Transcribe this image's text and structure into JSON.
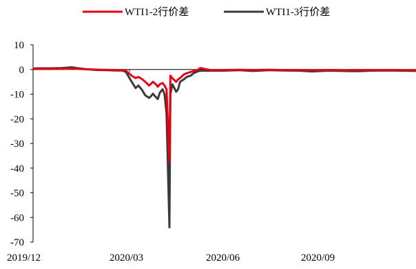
{
  "chart_data": {
    "type": "line",
    "legend_position": "top-center",
    "grid": false,
    "xlabel": "",
    "ylabel": "",
    "x_tick_labels": [
      "2019/12",
      "2020/03",
      "2020/06",
      "2020/09"
    ],
    "x_range": [
      "2019-12-01",
      "2020-12-31"
    ],
    "ylim": [
      -70,
      10
    ],
    "y_ticks": [
      10,
      0,
      -10,
      -20,
      -30,
      -40,
      -50,
      -60,
      -70
    ],
    "series": [
      {
        "name": "WTI1-3行价差",
        "color": "#3a3a3a",
        "points": [
          [
            "2019-12-02",
            0.4
          ],
          [
            "2019-12-10",
            0.5
          ],
          [
            "2019-12-20",
            0.5
          ],
          [
            "2019-12-31",
            0.6
          ],
          [
            "2020-01-10",
            0.9
          ],
          [
            "2020-01-15",
            0.6
          ],
          [
            "2020-01-25",
            0.1
          ],
          [
            "2020-02-05",
            -0.2
          ],
          [
            "2020-02-15",
            -0.3
          ],
          [
            "2020-02-25",
            -0.4
          ],
          [
            "2020-03-02",
            -0.4
          ],
          [
            "2020-03-06",
            -1.0
          ],
          [
            "2020-03-09",
            -3.0
          ],
          [
            "2020-03-12",
            -5.0
          ],
          [
            "2020-03-16",
            -7.5
          ],
          [
            "2020-03-19",
            -6.5
          ],
          [
            "2020-03-23",
            -8.5
          ],
          [
            "2020-03-26",
            -10.5
          ],
          [
            "2020-03-30",
            -11.5
          ],
          [
            "2020-04-01",
            -10.8
          ],
          [
            "2020-04-03",
            -9.8
          ],
          [
            "2020-04-06",
            -11.2
          ],
          [
            "2020-04-08",
            -12.0
          ],
          [
            "2020-04-10",
            -9.5
          ],
          [
            "2020-04-13",
            -8.0
          ],
          [
            "2020-04-15",
            -10.0
          ],
          [
            "2020-04-17",
            -18.0
          ],
          [
            "2020-04-20",
            -64.0
          ],
          [
            "2020-04-21",
            -10.0
          ],
          [
            "2020-04-23",
            -6.0
          ],
          [
            "2020-04-27",
            -9.0
          ],
          [
            "2020-04-29",
            -8.0
          ],
          [
            "2020-05-01",
            -5.0
          ],
          [
            "2020-05-05",
            -4.0
          ],
          [
            "2020-05-08",
            -3.0
          ],
          [
            "2020-05-12",
            -2.5
          ],
          [
            "2020-05-15",
            -1.5
          ],
          [
            "2020-05-19",
            -0.8
          ],
          [
            "2020-05-22",
            -0.5
          ],
          [
            "2020-06-01",
            -0.5
          ],
          [
            "2020-06-15",
            -0.5
          ],
          [
            "2020-07-01",
            -0.3
          ],
          [
            "2020-07-15",
            -0.6
          ],
          [
            "2020-08-01",
            -0.3
          ],
          [
            "2020-08-15",
            -0.4
          ],
          [
            "2020-09-01",
            -0.5
          ],
          [
            "2020-09-15",
            -0.8
          ],
          [
            "2020-10-01",
            -0.5
          ],
          [
            "2020-10-15",
            -0.6
          ],
          [
            "2020-11-01",
            -0.7
          ],
          [
            "2020-11-15",
            -0.5
          ],
          [
            "2020-12-01",
            -0.4
          ],
          [
            "2020-12-15",
            -0.5
          ],
          [
            "2020-12-31",
            -0.6
          ]
        ]
      },
      {
        "name": "WTI1-2行价差",
        "color": "#e60012",
        "points": [
          [
            "2019-12-02",
            0.2
          ],
          [
            "2019-12-15",
            0.2
          ],
          [
            "2019-12-31",
            0.3
          ],
          [
            "2020-01-10",
            0.4
          ],
          [
            "2020-01-25",
            0.1
          ],
          [
            "2020-02-10",
            -0.1
          ],
          [
            "2020-02-25",
            -0.2
          ],
          [
            "2020-03-02",
            -0.2
          ],
          [
            "2020-03-06",
            -0.5
          ],
          [
            "2020-03-09",
            -1.5
          ],
          [
            "2020-03-12",
            -2.5
          ],
          [
            "2020-03-16",
            -3.5
          ],
          [
            "2020-03-19",
            -3.0
          ],
          [
            "2020-03-23",
            -4.0
          ],
          [
            "2020-03-26",
            -5.0
          ],
          [
            "2020-03-30",
            -6.5
          ],
          [
            "2020-04-01",
            -5.8
          ],
          [
            "2020-04-03",
            -5.0
          ],
          [
            "2020-04-06",
            -6.0
          ],
          [
            "2020-04-08",
            -7.0
          ],
          [
            "2020-04-10",
            -6.0
          ],
          [
            "2020-04-13",
            -5.5
          ],
          [
            "2020-04-15",
            -6.5
          ],
          [
            "2020-04-17",
            -8.0
          ],
          [
            "2020-04-20",
            -37.5
          ],
          [
            "2020-04-21",
            -2.5
          ],
          [
            "2020-04-23",
            -3.5
          ],
          [
            "2020-04-27",
            -5.0
          ],
          [
            "2020-04-29",
            -4.0
          ],
          [
            "2020-05-01",
            -3.5
          ],
          [
            "2020-05-05",
            -2.0
          ],
          [
            "2020-05-08",
            -1.5
          ],
          [
            "2020-05-12",
            -1.0
          ],
          [
            "2020-05-15",
            -0.6
          ],
          [
            "2020-05-19",
            -0.2
          ],
          [
            "2020-05-22",
            0.6
          ],
          [
            "2020-06-01",
            -0.2
          ],
          [
            "2020-06-15",
            -0.2
          ],
          [
            "2020-07-01",
            -0.1
          ],
          [
            "2020-07-15",
            -0.2
          ],
          [
            "2020-08-01",
            -0.1
          ],
          [
            "2020-08-15",
            -0.2
          ],
          [
            "2020-09-01",
            -0.2
          ],
          [
            "2020-09-15",
            -0.3
          ],
          [
            "2020-10-01",
            -0.2
          ],
          [
            "2020-10-15",
            -0.3
          ],
          [
            "2020-11-01",
            -0.2
          ],
          [
            "2020-11-15",
            -0.2
          ],
          [
            "2020-12-01",
            -0.2
          ],
          [
            "2020-12-31",
            -0.3
          ]
        ]
      }
    ]
  },
  "legend": {
    "items": [
      {
        "label": "WTI1-2行价差",
        "color": "#e60012"
      },
      {
        "label": "WTI1-3行价差",
        "color": "#3a3a3a"
      }
    ]
  }
}
